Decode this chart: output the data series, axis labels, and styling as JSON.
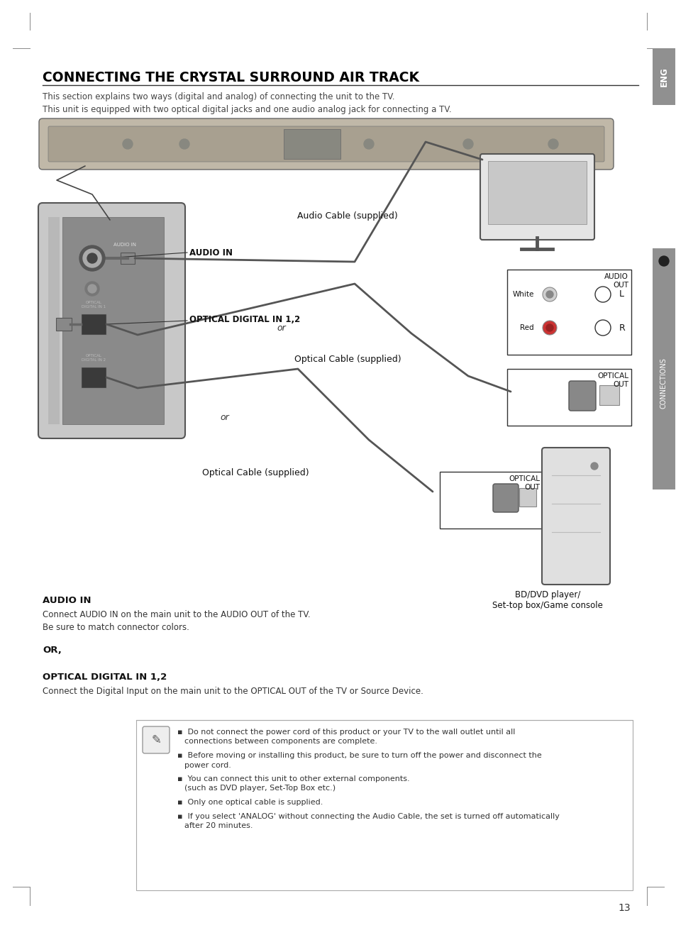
{
  "title": "CONNECTING THE CRYSTAL SURROUND AIR TRACK",
  "subtitle1": "This section explains two ways (digital and analog) of connecting the unit to the TV.",
  "subtitle2": "This unit is equipped with two optical digital jacks and one audio analog jack for connecting a TV.",
  "sidebar_text": "CONNECTIONS",
  "sidebar_label": "ENG",
  "section1_head": "AUDIO IN",
  "section1_body1": "Connect AUDIO IN on the main unit to the AUDIO OUT of the TV.",
  "section1_body2": "Be sure to match connector colors.",
  "or1": "OR,",
  "section2_head": "OPTICAL DIGITAL IN 1,2",
  "section2_body": "Connect the Digital Input on the main unit to the OPTICAL OUT of the TV or Source Device.",
  "note_bullet1": "Do not connect the power cord of this product or your TV to the wall outlet until all\nconnections between components are complete.",
  "note_bullet2": "Before moving or installing this product, be sure to turn off the power and disconnect the\npower cord.",
  "note_bullet3": "You can connect this unit to other external components.\n(such as DVD player, Set-Top Box etc.)",
  "note_bullet4": "Only one optical cable is supplied.",
  "note_bullet5": "If you select 'ANALOG' without connecting the Audio Cable, the set is turned off automatically\nafter 20 minutes.",
  "page_number": "13",
  "label_audio_in": "AUDIO IN",
  "label_optical_in": "OPTICAL DIGITAL IN 1,2",
  "label_audio_cable": "Audio Cable (supplied)",
  "label_optical_cable1": "Optical Cable (supplied)",
  "label_optical_cable2": "Optical Cable (supplied)",
  "label_audio_out": "AUDIO\nOUT",
  "label_optical_out1": "OPTICAL\nOUT",
  "label_optical_out2": "OPTICAL\nOUT",
  "label_white": "White",
  "label_red": "Red",
  "label_L": "L",
  "label_R": "R",
  "label_or1": "or",
  "label_or2": "or",
  "label_bd": "BD/DVD player/\nSet-top box/Game console",
  "bg_color": "#ffffff",
  "sidebar_bg": "#909090",
  "title_color": "#000000",
  "text_color": "#333333"
}
